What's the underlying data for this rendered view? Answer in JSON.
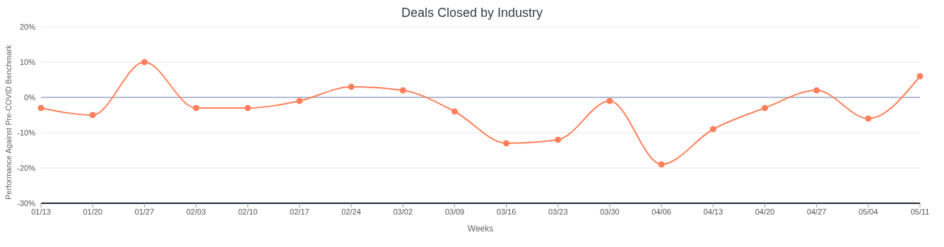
{
  "chart_data": {
    "type": "line",
    "title": "Deals Closed by Industry",
    "xlabel": "Weeks",
    "ylabel": "Performance Against Pre-COVID Benchmark",
    "categories": [
      "01/13",
      "01/20",
      "01/27",
      "02/03",
      "02/10",
      "02/17",
      "02/24",
      "03/02",
      "03/09",
      "03/16",
      "03/23",
      "03/30",
      "04/06",
      "04/13",
      "04/20",
      "04/27",
      "05/04",
      "05/11"
    ],
    "series": [
      {
        "color": "#ff7f5a",
        "values": [
          -3,
          -5,
          10,
          -3,
          -3,
          -1,
          3,
          2,
          -4,
          -13,
          -12,
          -1,
          -19,
          -9,
          -3,
          2,
          -6,
          6
        ]
      }
    ],
    "ylim": [
      -30,
      20
    ],
    "yticks": [
      {
        "value": -30,
        "label": "-30%"
      },
      {
        "value": -20,
        "label": "-20%"
      },
      {
        "value": -10,
        "label": "-10%"
      },
      {
        "value": 0,
        "label": "0%"
      },
      {
        "value": 10,
        "label": "10%"
      },
      {
        "value": 20,
        "label": "20%"
      }
    ],
    "ref_lines": [
      {
        "axis": "y",
        "value": 0,
        "color": "#7085ad"
      }
    ],
    "grid": "y",
    "legend": false,
    "marker": "circle",
    "line_style": "solid"
  }
}
